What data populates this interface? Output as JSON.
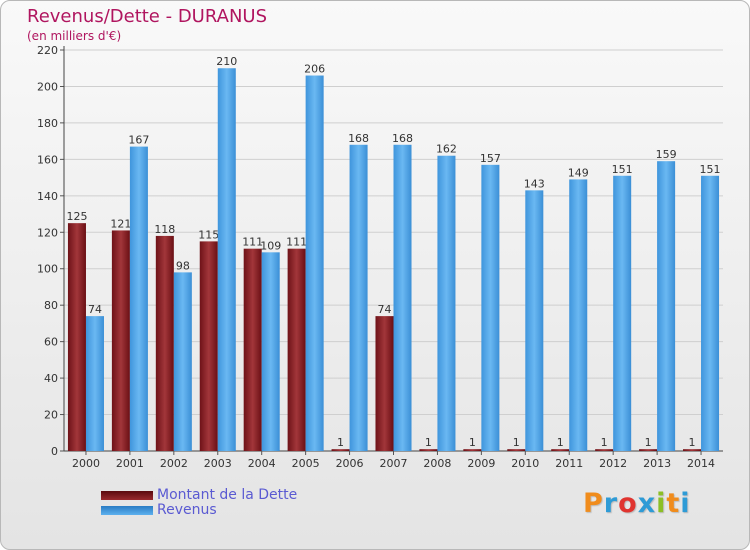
{
  "chart_data": {
    "type": "bar",
    "title": "Revenus/Dette - DURANUS",
    "subtitle": "(en milliers d'€)",
    "xlabel": "",
    "ylabel": "",
    "ylim": [
      0,
      220
    ],
    "yticks": [
      0,
      20,
      40,
      60,
      80,
      100,
      120,
      140,
      160,
      180,
      200,
      220
    ],
    "grid": true,
    "legend_position": "bottom-left",
    "categories": [
      "2000",
      "2001",
      "2002",
      "2003",
      "2004",
      "2005",
      "2006",
      "2007",
      "2008",
      "2009",
      "2010",
      "2011",
      "2012",
      "2013",
      "2014"
    ],
    "series": [
      {
        "name": "Montant de la Dette",
        "color": "#8b1f24",
        "values": [
          125,
          121,
          118,
          115,
          111,
          111,
          1,
          74,
          1,
          1,
          1,
          1,
          1,
          1,
          1
        ],
        "labels": [
          "125",
          "121",
          "118",
          "115",
          "111",
          "111",
          "1",
          "74",
          "1",
          "1",
          "1",
          "1",
          "1",
          "1",
          "1"
        ]
      },
      {
        "name": "Revenus",
        "color": "#4aa2e6",
        "values": [
          74,
          167,
          98,
          210,
          109,
          206,
          168,
          168,
          162,
          157,
          143,
          149,
          151,
          159,
          151
        ],
        "labels": [
          "74",
          "167",
          "98",
          "210",
          "109",
          "206",
          "168",
          "168",
          "162",
          "157",
          "143",
          "149",
          "151",
          "159",
          "151"
        ]
      }
    ]
  },
  "legend": {
    "debt_label": "Montant de la Dette",
    "revenue_label": "Revenus"
  },
  "logo": {
    "letters": [
      "P",
      "r",
      "o",
      "x",
      "i",
      "t",
      "i"
    ],
    "colors": [
      "#f08c1c",
      "#2e9bd6",
      "#e0342f",
      "#2e9bd6",
      "#8cbf26",
      "#f08c1c",
      "#2e9bd6"
    ]
  }
}
